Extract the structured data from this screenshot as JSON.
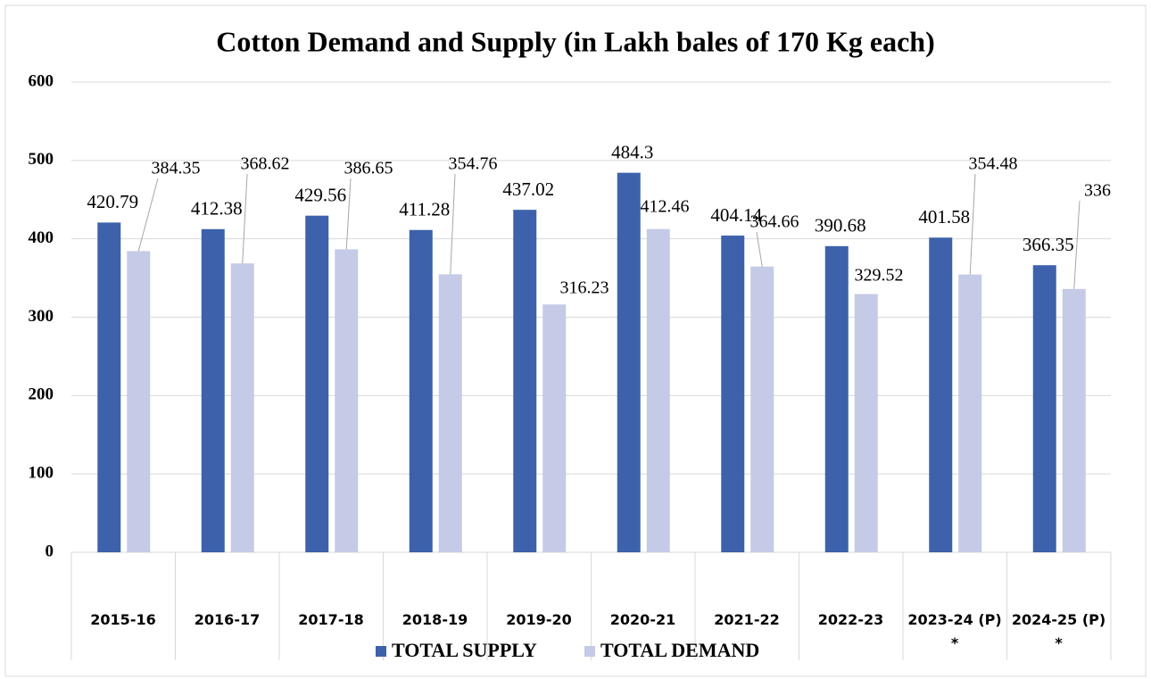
{
  "chart_data": {
    "type": "bar",
    "title": "Cotton Demand and Supply (in Lakh bales of 170 Kg each)",
    "categories": [
      "2015-16",
      "2016-17",
      "2017-18",
      "2018-19",
      "2019-20",
      "2020-21",
      "2021-22",
      "2022-23",
      "2023-24 (P) *",
      "2024-25 (P) *"
    ],
    "series": [
      {
        "name": "TOTAL SUPPLY",
        "color": "#3d62ab",
        "values": [
          420.79,
          412.38,
          429.56,
          411.28,
          437.02,
          484.3,
          404.14,
          390.68,
          401.58,
          366.35
        ]
      },
      {
        "name": "TOTAL DEMAND",
        "color": "#c5cae6",
        "values": [
          384.35,
          368.62,
          386.65,
          354.76,
          316.23,
          412.46,
          364.66,
          329.52,
          354.48,
          336
        ]
      }
    ],
    "ylim": [
      0,
      600
    ],
    "yticks": [
      0,
      100,
      200,
      300,
      400,
      500,
      600
    ],
    "grid": true,
    "legend": "bottom"
  }
}
